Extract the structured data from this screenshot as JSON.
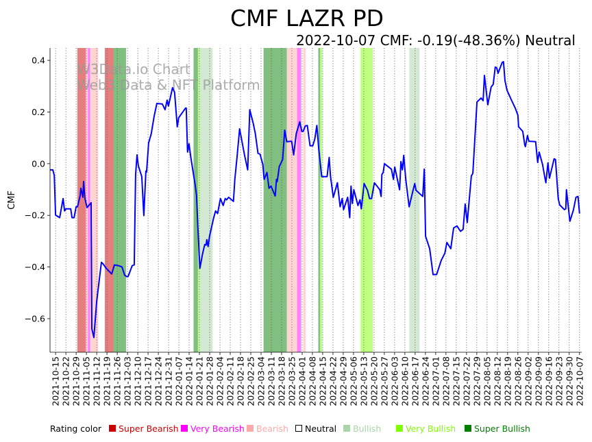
{
  "chart_data": {
    "type": "line",
    "title": "CMF LAZR PD",
    "subtitle": "2022-10-07 CMF: -0.19(-48.36%) Neutral",
    "watermark": [
      "W3Data.io Chart",
      "Web3 Data & NFT Platform"
    ],
    "ylabel": "CMF",
    "xlabel": "",
    "x_unit": "days since 2021-10-15",
    "xlim": [
      -3.8,
      358.5
    ],
    "ylim": [
      -0.73,
      0.448
    ],
    "yticks": [
      0.4,
      0.2,
      0.0,
      -0.2,
      -0.4,
      -0.6
    ],
    "ytick_labels": [
      "0.4",
      "0.2",
      "0.0",
      "−0.2",
      "−0.4",
      "−0.6"
    ],
    "grid": "vertical dotted at weekly ticks",
    "xtick_labels": [
      "2021-10-15",
      "2021-10-22",
      "2021-10-29",
      "2021-11-05",
      "2021-11-12",
      "2021-11-19",
      "2021-11-26",
      "2021-12-03",
      "2021-12-10",
      "2021-12-17",
      "2021-12-24",
      "2021-12-31",
      "2022-01-07",
      "2022-01-14",
      "2022-01-21",
      "2022-01-28",
      "2022-02-04",
      "2022-02-11",
      "2022-02-18",
      "2022-02-25",
      "2022-03-04",
      "2022-03-11",
      "2022-03-18",
      "2022-03-25",
      "2022-04-01",
      "2022-04-08",
      "2022-04-15",
      "2022-04-22",
      "2022-04-29",
      "2022-05-06",
      "2022-05-13",
      "2022-05-20",
      "2022-05-27",
      "2022-06-03",
      "2022-06-10",
      "2022-06-17",
      "2022-06-24",
      "2022-07-01",
      "2022-07-08",
      "2022-07-15",
      "2022-07-22",
      "2022-07-29",
      "2022-08-05",
      "2022-08-12",
      "2022-08-19",
      "2022-08-26",
      "2022-09-02",
      "2022-09-09",
      "2022-09-16",
      "2022-09-23",
      "2022-09-30",
      "2022-10-07"
    ],
    "series": [
      {
        "name": "CMF",
        "color": "#0000ff",
        "points": [
          [
            -3.7,
            -0.024
          ],
          [
            -1.9,
            -0.024
          ],
          [
            -0.9,
            -0.045
          ],
          [
            0,
            -0.199
          ],
          [
            2.8,
            -0.209
          ],
          [
            5.1,
            -0.135
          ],
          [
            6.1,
            -0.183
          ],
          [
            7,
            -0.175
          ],
          [
            10.3,
            -0.175
          ],
          [
            11.2,
            -0.209
          ],
          [
            12.6,
            -0.209
          ],
          [
            14,
            -0.167
          ],
          [
            14.9,
            -0.167
          ],
          [
            16.8,
            -0.122
          ],
          [
            17.2,
            -0.095
          ],
          [
            18.6,
            -0.13
          ],
          [
            19.1,
            -0.069
          ],
          [
            20,
            -0.135
          ],
          [
            21.4,
            -0.17
          ],
          [
            24.2,
            -0.151
          ],
          [
            24.7,
            -0.639
          ],
          [
            26.1,
            -0.673
          ],
          [
            28,
            -0.533
          ],
          [
            31.2,
            -0.382
          ],
          [
            32.2,
            -0.387
          ],
          [
            34.5,
            -0.405
          ],
          [
            38.2,
            -0.427
          ],
          [
            40.1,
            -0.392
          ],
          [
            42.9,
            -0.395
          ],
          [
            45.2,
            -0.4
          ],
          [
            47.1,
            -0.432
          ],
          [
            48.5,
            -0.437
          ],
          [
            49.4,
            -0.437
          ],
          [
            52.2,
            -0.395
          ],
          [
            53.6,
            -0.392
          ],
          [
            54.5,
            -0.042
          ],
          [
            55.5,
            0.034
          ],
          [
            56.4,
            -0.008
          ],
          [
            58.7,
            -0.05
          ],
          [
            60.1,
            -0.201
          ],
          [
            61.5,
            -0.029
          ],
          [
            62,
            -0.032
          ],
          [
            63.4,
            0.08
          ],
          [
            65.2,
            0.117
          ],
          [
            67.1,
            0.183
          ],
          [
            69,
            0.233
          ],
          [
            72.7,
            0.231
          ],
          [
            74.6,
            0.209
          ],
          [
            76,
            0.246
          ],
          [
            76.9,
            0.223
          ],
          [
            79.7,
            0.294
          ],
          [
            81.1,
            0.276
          ],
          [
            82.9,
            0.143
          ],
          [
            83.9,
            0.178
          ],
          [
            88.5,
            0.215
          ],
          [
            89,
            0.215
          ],
          [
            89.9,
            0.045
          ],
          [
            90.9,
            0.077
          ],
          [
            92.3,
            0.019
          ],
          [
            95.1,
            -0.082
          ],
          [
            96,
            -0.122
          ],
          [
            96.9,
            -0.241
          ],
          [
            98.3,
            -0.405
          ],
          [
            100.2,
            -0.347
          ],
          [
            101.6,
            -0.313
          ],
          [
            102.5,
            -0.315
          ],
          [
            103,
            -0.294
          ],
          [
            103.9,
            -0.321
          ],
          [
            104.9,
            -0.281
          ],
          [
            107.6,
            -0.212
          ],
          [
            109,
            -0.183
          ],
          [
            110.4,
            -0.193
          ],
          [
            112.3,
            -0.135
          ],
          [
            114.2,
            -0.162
          ],
          [
            115.6,
            -0.135
          ],
          [
            116.5,
            -0.14
          ],
          [
            117.9,
            -0.13
          ],
          [
            121.2,
            -0.146
          ],
          [
            122.1,
            -0.061
          ],
          [
            123.5,
            0.019
          ],
          [
            125.4,
            0.135
          ],
          [
            128.6,
            0.037
          ],
          [
            130.9,
            -0.024
          ],
          [
            132.3,
            0.209
          ],
          [
            134.7,
            0.156
          ],
          [
            136.1,
            0.117
          ],
          [
            137.9,
            0.04
          ],
          [
            139.3,
            0.037
          ],
          [
            141.2,
            -0.003
          ],
          [
            142.1,
            -0.061
          ],
          [
            144,
            -0.034
          ],
          [
            145.4,
            -0.095
          ],
          [
            146.8,
            -0.087
          ],
          [
            149.6,
            -0.125
          ],
          [
            150.5,
            -0.061
          ],
          [
            151,
            -0.069
          ],
          [
            152.4,
            -0.011
          ],
          [
            154.7,
            0.016
          ],
          [
            156.1,
            0.13
          ],
          [
            157.5,
            0.085
          ],
          [
            160.8,
            0.087
          ],
          [
            162.2,
            0.034
          ],
          [
            164,
            0.117
          ],
          [
            166.4,
            0.162
          ],
          [
            167.8,
            0.125
          ],
          [
            168.7,
            0.125
          ],
          [
            170.1,
            0.146
          ],
          [
            171.5,
            0.148
          ],
          [
            173.4,
            0.069
          ],
          [
            175.2,
            0.069
          ],
          [
            176.6,
            0.095
          ],
          [
            178,
            0.148
          ],
          [
            179.4,
            0.05
          ],
          [
            179.9,
            0.024
          ],
          [
            181.3,
            -0.05
          ],
          [
            185,
            -0.05
          ],
          [
            186.4,
            0.024
          ],
          [
            187.3,
            -0.048
          ],
          [
            189.2,
            -0.13
          ],
          [
            192,
            -0.074
          ],
          [
            193.9,
            -0.167
          ],
          [
            195.3,
            -0.135
          ],
          [
            196.2,
            -0.178
          ],
          [
            199,
            -0.13
          ],
          [
            200.4,
            -0.209
          ],
          [
            201.3,
            -0.087
          ],
          [
            202.2,
            -0.154
          ],
          [
            203.2,
            -0.101
          ],
          [
            206,
            -0.162
          ],
          [
            207.4,
            -0.14
          ],
          [
            208.3,
            -0.175
          ],
          [
            210.2,
            -0.077
          ],
          [
            212.5,
            -0.103
          ],
          [
            213.9,
            -0.135
          ],
          [
            215.3,
            -0.135
          ],
          [
            217.2,
            -0.074
          ],
          [
            220.9,
            -0.101
          ],
          [
            221.8,
            -0.127
          ],
          [
            222.3,
            -0.042
          ],
          [
            223.2,
            -0.034
          ],
          [
            224.1,
            0
          ],
          [
            228.8,
            -0.021
          ],
          [
            230.2,
            -0.061
          ],
          [
            231.1,
            -0.013
          ],
          [
            234.4,
            -0.101
          ],
          [
            235.3,
            0.008
          ],
          [
            236.3,
            -0.024
          ],
          [
            237.2,
            0.032
          ],
          [
            238.6,
            -0.061
          ],
          [
            240.9,
            -0.167
          ],
          [
            243.3,
            -0.109
          ],
          [
            244.7,
            -0.077
          ],
          [
            245.6,
            -0.103
          ],
          [
            250.2,
            -0.127
          ],
          [
            251.2,
            -0.021
          ],
          [
            252.1,
            -0.281
          ],
          [
            254.9,
            -0.329
          ],
          [
            257.2,
            -0.429
          ],
          [
            259.6,
            -0.429
          ],
          [
            262.8,
            -0.374
          ],
          [
            265.2,
            -0.347
          ],
          [
            266.6,
            -0.305
          ],
          [
            269.3,
            -0.329
          ],
          [
            271.2,
            -0.249
          ],
          [
            273.5,
            -0.241
          ],
          [
            275.9,
            -0.262
          ],
          [
            277.7,
            -0.254
          ],
          [
            279.1,
            -0.156
          ],
          [
            280.5,
            -0.228
          ],
          [
            283.3,
            -0.048
          ],
          [
            284.3,
            -0.037
          ],
          [
            287.1,
            0.239
          ],
          [
            289.9,
            0.254
          ],
          [
            291.3,
            0.244
          ],
          [
            292.2,
            0.342
          ],
          [
            294.5,
            0.228
          ],
          [
            296.8,
            0.297
          ],
          [
            298.2,
            0.307
          ],
          [
            299.6,
            0.374
          ],
          [
            300.6,
            0.371
          ],
          [
            301.5,
            0.35
          ],
          [
            304.3,
            0.392
          ],
          [
            305.2,
            0.395
          ],
          [
            306.2,
            0.321
          ],
          [
            307.6,
            0.284
          ],
          [
            310.8,
            0.244
          ],
          [
            313.2,
            0.215
          ],
          [
            315,
            0.188
          ],
          [
            315.5,
            0.143
          ],
          [
            318.3,
            0.125
          ],
          [
            319.7,
            0.072
          ],
          [
            320.1,
            0.066
          ],
          [
            321.5,
            0.109
          ],
          [
            322.5,
            0.087
          ],
          [
            327.1,
            0.085
          ],
          [
            328.5,
            0.005
          ],
          [
            329.5,
            0.045
          ],
          [
            331.8,
            -0.003
          ],
          [
            333.7,
            -0.064
          ],
          [
            334.1,
            -0.074
          ],
          [
            335.5,
            0.003
          ],
          [
            336.5,
            -0.056
          ],
          [
            339.7,
            0.019
          ],
          [
            340.6,
            0.016
          ],
          [
            342.5,
            -0.135
          ],
          [
            343.4,
            -0.159
          ],
          [
            346.7,
            -0.178
          ],
          [
            347.6,
            -0.175
          ],
          [
            348.1,
            -0.101
          ],
          [
            350.4,
            -0.223
          ],
          [
            352.8,
            -0.18
          ],
          [
            354.6,
            -0.13
          ],
          [
            356,
            -0.127
          ],
          [
            357,
            -0.193
          ]
        ]
      }
    ],
    "rating_bands": [
      {
        "start": 14.8,
        "end": 20.5,
        "rating": "super_bearish"
      },
      {
        "start": 20.5,
        "end": 22,
        "rating": "bearish"
      },
      {
        "start": 22,
        "end": 23.6,
        "rating": "very_bearish"
      },
      {
        "start": 23.6,
        "end": 29,
        "rating": "bearish"
      },
      {
        "start": 33.5,
        "end": 39.6,
        "rating": "super_bearish"
      },
      {
        "start": 39.6,
        "end": 48,
        "rating": "super_bullish"
      },
      {
        "start": 94,
        "end": 97,
        "rating": "super_bullish"
      },
      {
        "start": 97,
        "end": 98.3,
        "rating": "very_bullish"
      },
      {
        "start": 98.3,
        "end": 107,
        "rating": "bullish"
      },
      {
        "start": 141.7,
        "end": 157.5,
        "rating": "super_bullish"
      },
      {
        "start": 157.5,
        "end": 164.5,
        "rating": "bearish"
      },
      {
        "start": 164.5,
        "end": 167.3,
        "rating": "very_bearish"
      },
      {
        "start": 168.7,
        "end": 170.5,
        "rating": "bearish"
      },
      {
        "start": 179,
        "end": 180.3,
        "rating": "super_bullish"
      },
      {
        "start": 180.3,
        "end": 181.7,
        "rating": "very_bullish"
      },
      {
        "start": 207.8,
        "end": 216.2,
        "rating": "very_bullish"
      },
      {
        "start": 241,
        "end": 248,
        "rating": "bullish"
      }
    ],
    "band_colors": {
      "super_bearish": "#e67e7e",
      "very_bearish": "#ff80ff",
      "bearish": "#ffd4d4",
      "bullish": "#d3e9d3",
      "very_bullish": "#bfff80",
      "super_bullish": "#80bf80"
    },
    "legend": {
      "placement": "bottom",
      "title": "Rating color",
      "items": [
        {
          "label": "Super Bearish",
          "color": "#cc0000",
          "text_color": "#cc0000"
        },
        {
          "label": "Very Bearish",
          "color": "#ff00ff",
          "text_color": "#ff00ff"
        },
        {
          "label": "Bearish",
          "color": "#ffaaaa",
          "text_color": "#ffaaaa"
        },
        {
          "label": "Neutral",
          "color": "none",
          "text_color": "#000000"
        },
        {
          "label": "Bullish",
          "color": "#aad5aa",
          "text_color": "#aad5aa"
        },
        {
          "label": "Very Bullish",
          "color": "#7fff00",
          "text_color": "#7fff00"
        },
        {
          "label": "Super Bullish",
          "color": "#007f00",
          "text_color": "#007f00"
        }
      ]
    }
  }
}
